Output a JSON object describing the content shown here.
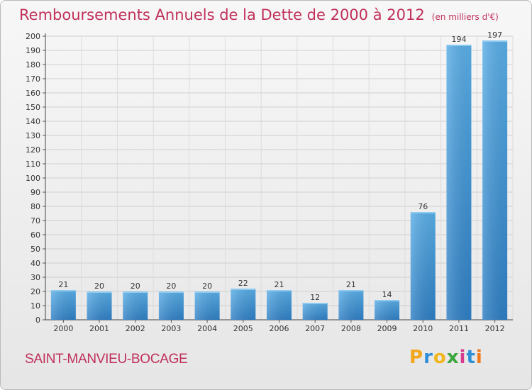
{
  "header": {
    "title": "Remboursements Annuels de la Dette de 2000 à 2012",
    "unit": "(en milliers d'€)"
  },
  "commune": "SAINT-MANVIEU-BOCAGE",
  "logo": {
    "text": "Proxiti",
    "letters": [
      "P",
      "r",
      "o",
      "x",
      "i",
      "t",
      "i"
    ]
  },
  "colors": {
    "title": "#c0305a",
    "bar_top": "#5aaee6",
    "bar_bottom": "#2f7fc4"
  },
  "chart_data": {
    "type": "bar",
    "title": "Remboursements Annuels de la Dette de 2000 à 2012",
    "xlabel": "",
    "ylabel": "",
    "categories": [
      "2000",
      "2001",
      "2002",
      "2003",
      "2004",
      "2005",
      "2006",
      "2007",
      "2008",
      "2009",
      "2010",
      "2011",
      "2012"
    ],
    "values": [
      21,
      20,
      20,
      20,
      20,
      22,
      21,
      12,
      21,
      14,
      76,
      194,
      197
    ],
    "ylim": [
      0,
      200
    ],
    "yticks": [
      0,
      10,
      20,
      30,
      40,
      50,
      60,
      70,
      80,
      90,
      100,
      110,
      120,
      130,
      140,
      150,
      160,
      170,
      180,
      190,
      200
    ],
    "grid": true,
    "data_labels": true
  }
}
